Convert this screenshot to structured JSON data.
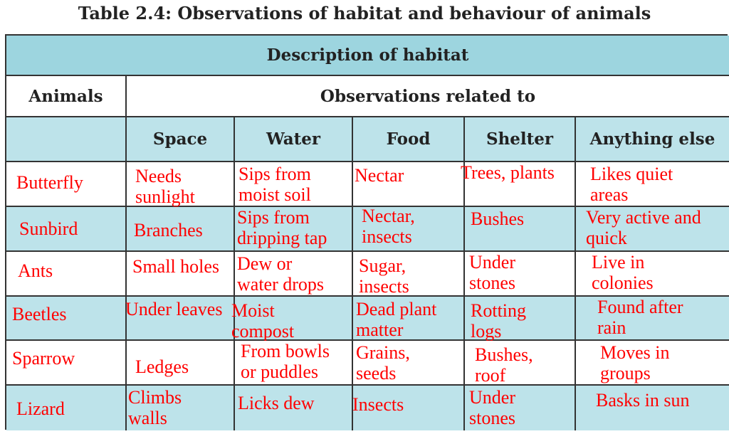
{
  "title": "Table 2.4: Observations of habitat and behaviour of animals",
  "table": {
    "banner": "Description of habitat",
    "animals_header": "Animals",
    "observations_header": "Observations related to",
    "columns": [
      "Space",
      "Water",
      "Food",
      "Shelter",
      "Anything else"
    ],
    "rows": [
      {
        "animal": "Butterfly",
        "cells": [
          "Needs\nsunlight",
          "Sips from\nmoist soil",
          "Nectar",
          "Trees, plants",
          "Likes quiet\nareas"
        ]
      },
      {
        "animal": "Sunbird",
        "cells": [
          "Branches",
          "Sips from\ndripping tap",
          "Nectar,\ninsects",
          "Bushes",
          "Very active and\nquick"
        ]
      },
      {
        "animal": "Ants",
        "cells": [
          "Small holes",
          "Dew or\nwater drops",
          "Sugar,\ninsects",
          "Under\nstones",
          "Live in\ncolonies"
        ]
      },
      {
        "animal": "Beetles",
        "cells": [
          "Under leaves",
          "Moist\ncompost",
          "Dead plant\nmatter",
          "Rotting\nlogs",
          "Found after\nrain"
        ]
      },
      {
        "animal": "Sparrow",
        "cells": [
          "Ledges",
          "From bowls\nor puddles",
          "Grains,\nseeds",
          "Bushes,\nroof",
          "Moves in\ngroups"
        ]
      },
      {
        "animal": "Lizard",
        "cells": [
          "Climbs\nwalls",
          "Licks dew",
          "Insects",
          "Under\nstones",
          "Basks in sun"
        ]
      }
    ]
  }
}
